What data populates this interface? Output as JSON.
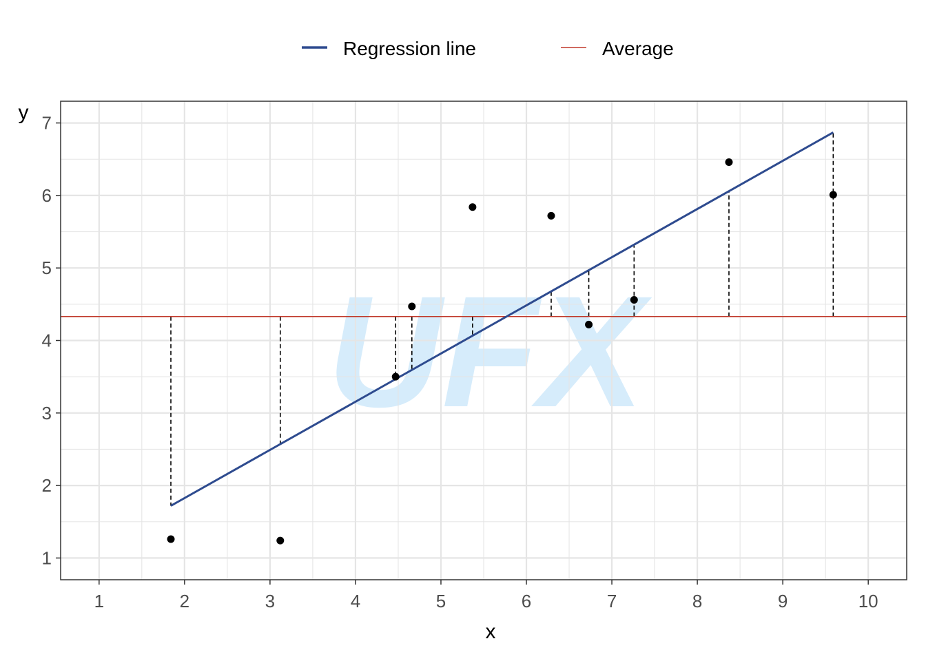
{
  "chart_data": {
    "type": "scatter",
    "title": "",
    "xlabel": "x",
    "ylabel": "y",
    "xlim": [
      0.55,
      10.45
    ],
    "ylim": [
      0.7,
      7.3
    ],
    "xticks": [
      1,
      2,
      3,
      4,
      5,
      6,
      7,
      8,
      9,
      10
    ],
    "yticks": [
      1,
      2,
      3,
      4,
      5,
      6,
      7
    ],
    "grid": true,
    "legend_position": "top",
    "legend": [
      {
        "label": "Regression line",
        "color": "#2e4b8f",
        "kind": "line"
      },
      {
        "label": "Average",
        "color": "#c0392b",
        "kind": "line"
      }
    ],
    "points": {
      "x": [
        1.84,
        3.12,
        4.47,
        4.66,
        5.37,
        6.29,
        6.73,
        7.26,
        8.37,
        9.59
      ],
      "y": [
        1.26,
        1.24,
        3.5,
        4.47,
        5.84,
        5.72,
        4.22,
        4.56,
        6.46,
        6.01
      ]
    },
    "regression_line": {
      "x": [
        1.84,
        9.59
      ],
      "y": [
        1.72,
        6.87
      ]
    },
    "average_y": 4.33,
    "deviation_lines": {
      "x": [
        1.84,
        3.12,
        4.47,
        4.66,
        5.37,
        6.29,
        6.73,
        7.26,
        8.37,
        9.59
      ],
      "from_y": [
        4.33,
        4.33,
        4.33,
        4.33,
        4.33,
        4.33,
        4.33,
        4.33,
        4.33,
        4.33
      ],
      "to_y": [
        1.72,
        2.57,
        3.47,
        3.59,
        4.06,
        4.68,
        4.97,
        5.32,
        6.06,
        6.87
      ]
    },
    "watermark": "UFX",
    "colors": {
      "regression": "#2e4b8f",
      "average": "#c0392b",
      "points": "#000000",
      "grid": "#e5e5e5",
      "watermark": "#d6ecfb"
    }
  }
}
